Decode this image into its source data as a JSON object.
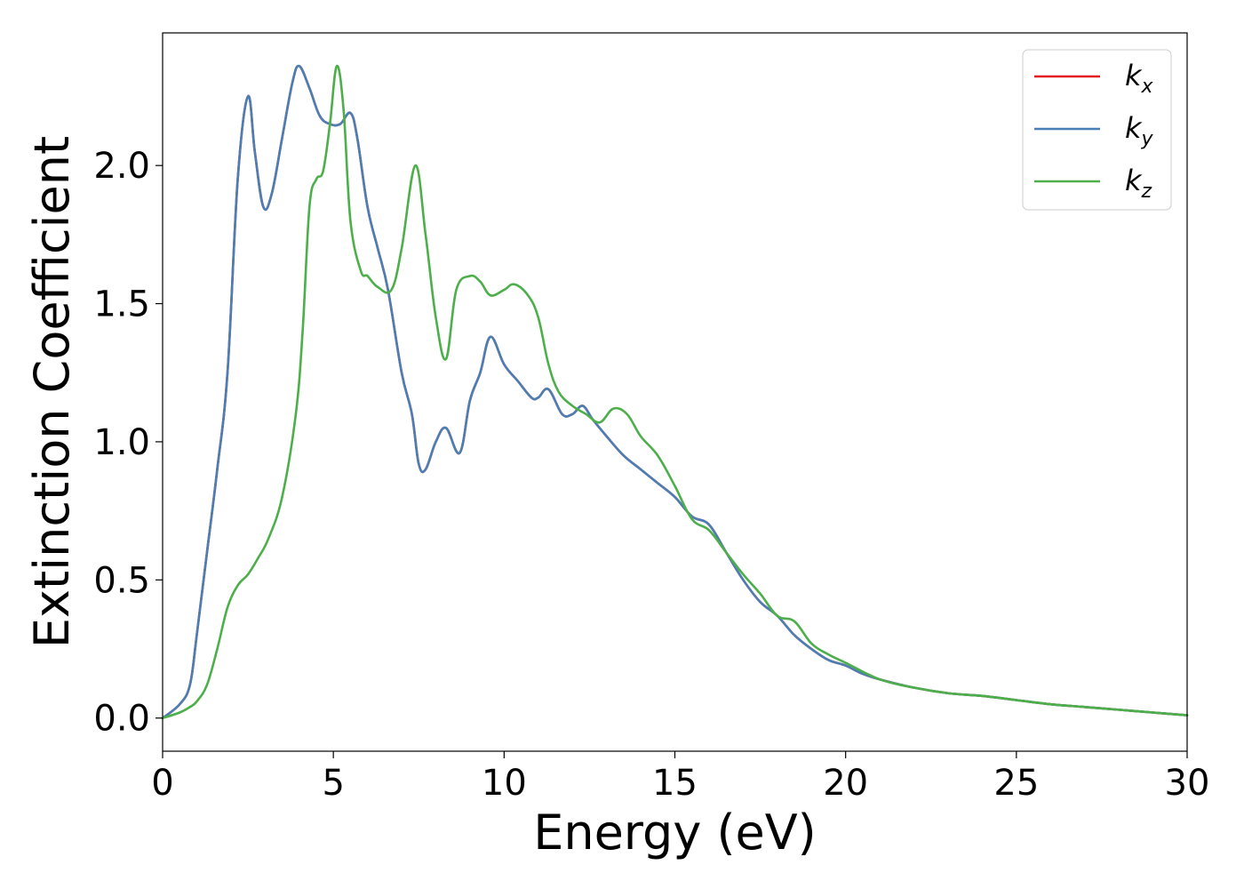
{
  "chart_data": {
    "type": "line",
    "title": "",
    "xlabel": "Energy (eV)",
    "ylabel": "Extinction Coefficient",
    "xlim": [
      0,
      30
    ],
    "ylim": [
      -0.12,
      2.48
    ],
    "xticks": [
      0,
      5,
      10,
      15,
      20,
      25,
      30
    ],
    "yticks": [
      0.0,
      0.5,
      1.0,
      1.5,
      2.0
    ],
    "xtick_labels": [
      "0",
      "5",
      "10",
      "15",
      "20",
      "25",
      "30"
    ],
    "ytick_labels": [
      "0.0",
      "0.5",
      "1.0",
      "1.5",
      "2.0"
    ],
    "grid": false,
    "legend_position": "top-right",
    "series": [
      {
        "name": "kx",
        "label_base": "k",
        "label_sub": "x",
        "color": "#e41a1c",
        "x": [
          0,
          0.5,
          0.8,
          1.0,
          1.3,
          1.6,
          1.9,
          2.2,
          2.5,
          2.7,
          2.95,
          3.2,
          3.5,
          3.8,
          4.0,
          4.3,
          4.6,
          4.9,
          5.2,
          5.5,
          5.7,
          6.0,
          6.3,
          6.6,
          7.0,
          7.3,
          7.5,
          7.7,
          8.0,
          8.3,
          8.7,
          9.0,
          9.3,
          9.6,
          10.0,
          10.4,
          10.8,
          11.0,
          11.3,
          11.7,
          12.0,
          12.3,
          12.6,
          13.0,
          13.5,
          14.0,
          14.5,
          15.0,
          15.5,
          16.0,
          16.5,
          17.0,
          17.5,
          18.0,
          18.5,
          19.0,
          19.5,
          20.0,
          20.5,
          21.0,
          22.0,
          23.0,
          24.0,
          25.0,
          26.0,
          27.0,
          28.0,
          29.0,
          30.0
        ],
        "y": [
          0.0,
          0.05,
          0.12,
          0.3,
          0.6,
          0.9,
          1.25,
          1.95,
          2.25,
          2.05,
          1.85,
          1.9,
          2.1,
          2.3,
          2.36,
          2.28,
          2.18,
          2.15,
          2.15,
          2.19,
          2.1,
          1.85,
          1.7,
          1.55,
          1.25,
          1.1,
          0.92,
          0.9,
          1.0,
          1.05,
          0.96,
          1.15,
          1.25,
          1.38,
          1.28,
          1.22,
          1.16,
          1.16,
          1.19,
          1.1,
          1.1,
          1.13,
          1.08,
          1.02,
          0.95,
          0.9,
          0.85,
          0.8,
          0.73,
          0.7,
          0.6,
          0.5,
          0.42,
          0.37,
          0.3,
          0.25,
          0.21,
          0.19,
          0.16,
          0.14,
          0.11,
          0.09,
          0.08,
          0.065,
          0.05,
          0.04,
          0.03,
          0.02,
          0.01
        ]
      },
      {
        "name": "ky",
        "label_base": "k",
        "label_sub": "y",
        "color": "#4a7fb5",
        "x": [
          0,
          0.5,
          0.8,
          1.0,
          1.3,
          1.6,
          1.9,
          2.2,
          2.5,
          2.7,
          2.95,
          3.2,
          3.5,
          3.8,
          4.0,
          4.3,
          4.6,
          4.9,
          5.2,
          5.5,
          5.7,
          6.0,
          6.3,
          6.6,
          7.0,
          7.3,
          7.5,
          7.7,
          8.0,
          8.3,
          8.7,
          9.0,
          9.3,
          9.6,
          10.0,
          10.4,
          10.8,
          11.0,
          11.3,
          11.7,
          12.0,
          12.3,
          12.6,
          13.0,
          13.5,
          14.0,
          14.5,
          15.0,
          15.5,
          16.0,
          16.5,
          17.0,
          17.5,
          18.0,
          18.5,
          19.0,
          19.5,
          20.0,
          20.5,
          21.0,
          22.0,
          23.0,
          24.0,
          25.0,
          26.0,
          27.0,
          28.0,
          29.0,
          30.0
        ],
        "y": [
          0.0,
          0.05,
          0.12,
          0.3,
          0.6,
          0.9,
          1.25,
          1.95,
          2.25,
          2.05,
          1.85,
          1.9,
          2.1,
          2.3,
          2.36,
          2.28,
          2.18,
          2.15,
          2.15,
          2.19,
          2.1,
          1.85,
          1.7,
          1.55,
          1.25,
          1.1,
          0.92,
          0.9,
          1.0,
          1.05,
          0.96,
          1.15,
          1.25,
          1.38,
          1.28,
          1.22,
          1.16,
          1.16,
          1.19,
          1.1,
          1.1,
          1.13,
          1.08,
          1.02,
          0.95,
          0.9,
          0.85,
          0.8,
          0.73,
          0.7,
          0.6,
          0.5,
          0.42,
          0.37,
          0.3,
          0.25,
          0.21,
          0.19,
          0.16,
          0.14,
          0.11,
          0.09,
          0.08,
          0.065,
          0.05,
          0.04,
          0.03,
          0.02,
          0.01
        ]
      },
      {
        "name": "kz",
        "label_base": "k",
        "label_sub": "z",
        "color": "#4daf4a",
        "x": [
          0,
          0.5,
          0.8,
          1.0,
          1.3,
          1.6,
          1.9,
          2.2,
          2.5,
          2.8,
          3.1,
          3.5,
          3.9,
          4.1,
          4.3,
          4.5,
          4.7,
          4.9,
          5.1,
          5.3,
          5.5,
          5.8,
          6.0,
          6.3,
          6.7,
          7.0,
          7.4,
          7.7,
          8.0,
          8.3,
          8.6,
          9.0,
          9.3,
          9.6,
          10.0,
          10.3,
          10.7,
          11.0,
          11.3,
          11.6,
          12.0,
          12.4,
          12.8,
          13.2,
          13.6,
          14.0,
          14.5,
          15.0,
          15.5,
          16.0,
          16.5,
          17.0,
          17.5,
          18.0,
          18.5,
          19.0,
          19.5,
          20.0,
          21.0,
          22.0,
          23.0,
          24.0,
          25.0,
          26.0,
          27.0,
          28.0,
          29.0,
          30.0
        ],
        "y": [
          0.0,
          0.02,
          0.04,
          0.06,
          0.12,
          0.25,
          0.4,
          0.48,
          0.52,
          0.58,
          0.65,
          0.8,
          1.1,
          1.4,
          1.85,
          1.95,
          1.98,
          2.15,
          2.36,
          2.2,
          1.8,
          1.62,
          1.6,
          1.56,
          1.55,
          1.7,
          2.0,
          1.75,
          1.45,
          1.3,
          1.55,
          1.6,
          1.58,
          1.53,
          1.55,
          1.57,
          1.53,
          1.45,
          1.28,
          1.18,
          1.13,
          1.1,
          1.07,
          1.12,
          1.1,
          1.02,
          0.95,
          0.84,
          0.72,
          0.68,
          0.6,
          0.52,
          0.45,
          0.37,
          0.35,
          0.27,
          0.23,
          0.2,
          0.14,
          0.11,
          0.09,
          0.08,
          0.065,
          0.05,
          0.04,
          0.03,
          0.02,
          0.01
        ]
      }
    ]
  }
}
